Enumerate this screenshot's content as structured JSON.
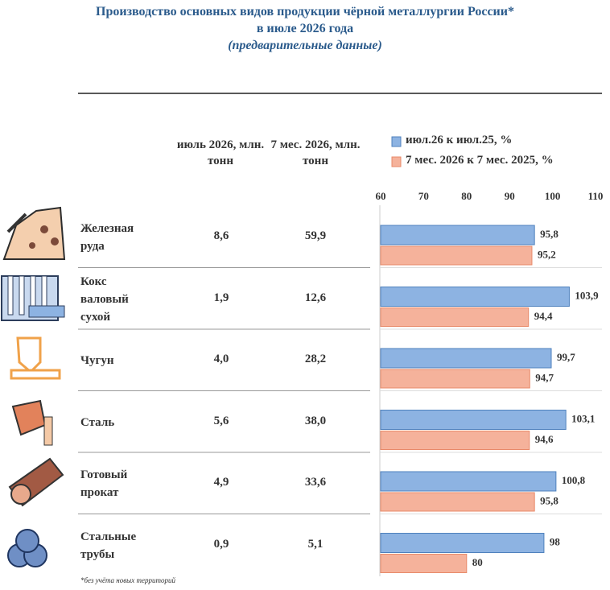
{
  "header": {
    "title_lines": [
      "Производство основных видов продукции чёрной металлургии России*",
      "в июле 2026 года",
      "(предварительные данные)"
    ]
  },
  "table": {
    "columns": [
      "июль 2026, млн. тонн",
      "7 мес. 2026, млн. тонн"
    ],
    "rows": [
      [
        "8,6",
        "59,9"
      ],
      [
        "1,9",
        "12,6"
      ],
      [
        "4,0",
        "28,2"
      ],
      [
        "5,6",
        "38,0"
      ],
      [
        "4,9",
        "33,6"
      ],
      [
        "0,9",
        "5,1"
      ]
    ]
  },
  "chart_data": {
    "type": "hbar",
    "categories": [
      "Железная руда",
      "Кокс валовый сухой",
      "Чугун",
      "Сталь",
      "Готовый прокат",
      "Стальные трубы"
    ],
    "series": [
      {
        "name": "июл.26 к июл.25, %",
        "color": "#8db3e2",
        "values": [
          95.8,
          103.9,
          99.7,
          103.1,
          100.8,
          98
        ],
        "value_labels": [
          "95,8",
          "103,9",
          "99,7",
          "103,1",
          "100,8",
          "98"
        ]
      },
      {
        "name": "7 мес. 2026 к 7 мес. 2025, %",
        "color": "#f5b29b",
        "values": [
          95.2,
          94.4,
          94.7,
          94.6,
          95.8,
          80
        ],
        "value_labels": [
          "95,2",
          "94,4",
          "94,7",
          "94,6",
          "95,8",
          "80"
        ]
      }
    ],
    "xlim": [
      60,
      110
    ],
    "xticks": [
      60,
      70,
      80,
      90,
      100,
      110
    ]
  },
  "footnote": "*без учёта новых территорий"
}
